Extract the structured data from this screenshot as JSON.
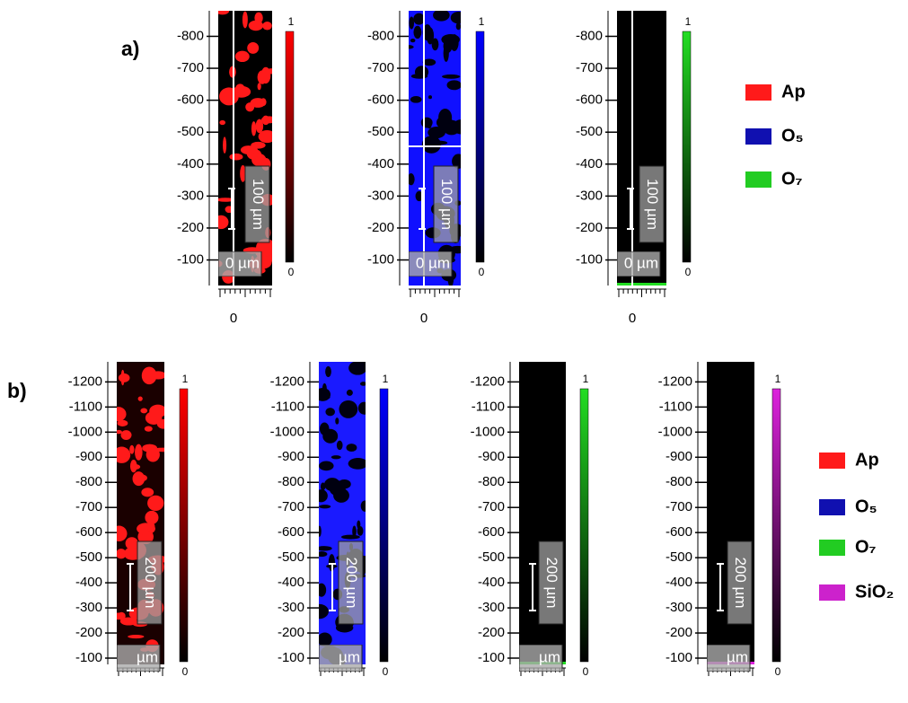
{
  "panel_a": {
    "label": "a)",
    "maps": [
      {
        "background": "#000000",
        "spot": "#ff1a1a",
        "colorbar_color": "#ff0000",
        "yticks": [
          -800,
          -700,
          -600,
          -500,
          -400,
          -300,
          -200,
          -100
        ],
        "ylim": [
          -20,
          -880
        ],
        "xtick": 0,
        "colorbar_max": 1,
        "colorbar_min": 0,
        "scalebar": "100 µm",
        "origin_label": "0 µm"
      },
      {
        "background": "#1010ff",
        "spot": "#000010",
        "colorbar_color": "#0000ff",
        "yticks": [
          -800,
          -700,
          -600,
          -500,
          -400,
          -300,
          -200,
          -100
        ],
        "ylim": [
          -20,
          -880
        ],
        "xtick": 0,
        "colorbar_max": 1,
        "colorbar_min": 0,
        "scalebar": "100 µm",
        "origin_label": "0 µm"
      },
      {
        "background": "#000000",
        "colorbar_color": "#22dd22",
        "yticks": [
          -800,
          -700,
          -600,
          -500,
          -400,
          -300,
          -200,
          -100
        ],
        "ylim": [
          -20,
          -880
        ],
        "xtick": 0,
        "colorbar_max": 1,
        "colorbar_min": 0,
        "scalebar": "100 µm",
        "origin_label": "0 µm"
      }
    ],
    "legend": [
      {
        "label": "Ap",
        "color": "#ff1a1a"
      },
      {
        "label": "O₅",
        "color": "#1010b0"
      },
      {
        "label": "O₇",
        "color": "#22cc22"
      }
    ]
  },
  "panel_b": {
    "label": "b)",
    "maps": [
      {
        "background": "#1a0000",
        "spot": "#ff1a1a",
        "colorbar_color": "#ff0000",
        "yticks": [
          -1200,
          -1100,
          -1000,
          -900,
          -800,
          -700,
          -600,
          -500,
          -400,
          -300,
          -200,
          -100
        ],
        "ylim": [
          -75,
          -1280
        ],
        "colorbar_max": 1,
        "colorbar_min": 0,
        "scalebar": "200 µm",
        "origin_label": "µm"
      },
      {
        "background": "#1a1aff",
        "spot": "#000010",
        "colorbar_color": "#0000ff",
        "yticks": [
          -1200,
          -1100,
          -1000,
          -900,
          -800,
          -700,
          -600,
          -500,
          -400,
          -300,
          -200,
          -100
        ],
        "ylim": [
          -75,
          -1280
        ],
        "colorbar_max": 1,
        "colorbar_min": 0,
        "scalebar": "200 µm",
        "origin_label": "µm"
      },
      {
        "background": "#000000",
        "colorbar_color": "#22dd22",
        "yticks": [
          -1200,
          -1100,
          -1000,
          -900,
          -800,
          -700,
          -600,
          -500,
          -400,
          -300,
          -200,
          -100
        ],
        "ylim": [
          -75,
          -1280
        ],
        "colorbar_max": 1,
        "colorbar_min": 0,
        "scalebar": "200 µm",
        "origin_label": "µm"
      },
      {
        "background": "#000000",
        "colorbar_color": "#dd22dd",
        "yticks": [
          -1200,
          -1100,
          -1000,
          -900,
          -800,
          -700,
          -600,
          -500,
          -400,
          -300,
          -200,
          -100
        ],
        "ylim": [
          -75,
          -1280
        ],
        "colorbar_max": 1,
        "colorbar_min": 0,
        "scalebar": "200 µm",
        "origin_label": "µm"
      }
    ],
    "legend": [
      {
        "label": "Ap",
        "color": "#ff1a1a"
      },
      {
        "label": "O₅",
        "color": "#1010b0"
      },
      {
        "label": "O₇",
        "color": "#22cc22"
      },
      {
        "label": "SiO₂",
        "color": "#cc22cc"
      }
    ]
  }
}
